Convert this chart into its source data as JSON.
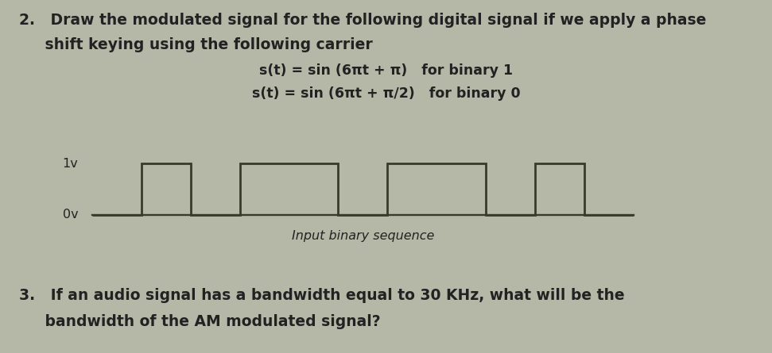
{
  "background_color": "#b5b8a7",
  "text_color": "#222222",
  "line_color": "#3a3a2a",
  "line_width": 2.0,
  "bits": [
    0,
    1,
    0,
    1,
    1,
    0,
    1,
    1,
    0,
    1,
    0
  ],
  "ylabel_1v": "1v",
  "ylabel_0v": "0v",
  "xlabel": "Input binary sequence",
  "font_size_main": 13.5,
  "font_size_eq": 12.5,
  "font_size_axis": 11.5,
  "font_size_xlabel": 11.5,
  "font_size_q3": 13.5
}
